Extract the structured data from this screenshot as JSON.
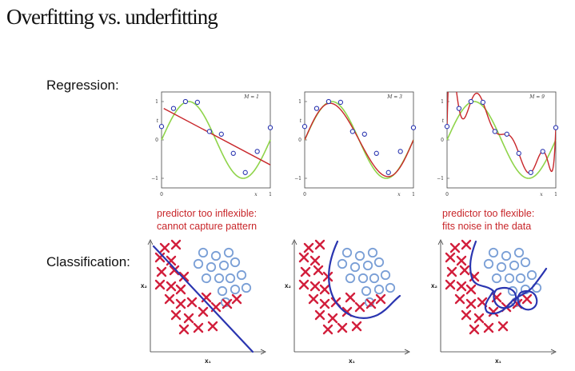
{
  "title": "Overfitting vs. underfitting",
  "rows": {
    "regression_label": "Regression:",
    "classification_label": "Classification:"
  },
  "captions": {
    "left": [
      "predictor too inflexible:",
      "cannot capture pattern"
    ],
    "right": [
      "predictor too flexible:",
      "fits noise in the data"
    ]
  },
  "regression_panels": [
    {
      "model_label": "M = 1",
      "ytick_top": "1",
      "ytick_mid": "0",
      "ytick_bot": "−1",
      "y_axis_label": "t",
      "xtick_left": "0",
      "xtick_right": "1",
      "x_axis_label": "x"
    },
    {
      "model_label": "M = 3",
      "ytick_top": "1",
      "ytick_mid": "0",
      "ytick_bot": "−1",
      "y_axis_label": "t",
      "xtick_left": "0",
      "xtick_right": "1",
      "x_axis_label": "x"
    },
    {
      "model_label": "M = 9",
      "ytick_top": "1",
      "ytick_mid": "0",
      "ytick_bot": "−1",
      "y_axis_label": "t",
      "xtick_left": "0",
      "xtick_right": "1",
      "x_axis_label": "x"
    }
  ],
  "classification_panels": [
    {
      "x_axis_label": "x₁",
      "y_axis_label": "x₂"
    },
    {
      "x_axis_label": "x₁",
      "y_axis_label": "x₂"
    },
    {
      "x_axis_label": "x₁",
      "y_axis_label": "x₂"
    }
  ],
  "colors": {
    "truth_curve": "#8fd44a",
    "fit_curve": "#c8262a",
    "data_point": "#2a35b0",
    "cross": "#d21f3c",
    "circle": "#7a9fd6",
    "boundary": "#2a35b0"
  }
}
